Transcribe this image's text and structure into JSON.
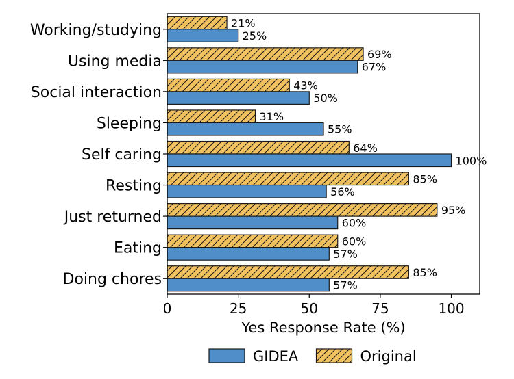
{
  "chart_data": {
    "type": "bar",
    "orientation": "horizontal",
    "title": "",
    "xlabel": "Yes Response Rate (%)",
    "ylabel": "",
    "xlim": [
      0,
      110
    ],
    "x_ticks": [
      "0",
      "25",
      "50",
      "75",
      "100"
    ],
    "x_tick_values": [
      0,
      25,
      50,
      75,
      100
    ],
    "grid": false,
    "legend_position": "bottom-center",
    "categories": [
      "Working/studying",
      "Using media",
      "Social interaction",
      "Sleeping",
      "Self caring",
      "Resting",
      "Just returned",
      "Eating",
      "Doing chores"
    ],
    "series": [
      {
        "name": "Original",
        "color": "#f0c15e",
        "hatch": "diagonal",
        "values": [
          21,
          69,
          43,
          31,
          64,
          85,
          95,
          60,
          85
        ],
        "labels": [
          "21%",
          "69%",
          "43%",
          "31%",
          "64%",
          "85%",
          "95%",
          "60%",
          "85%"
        ]
      },
      {
        "name": "GIDEA",
        "color": "#4f8ec9",
        "hatch": "none",
        "values": [
          25,
          67,
          50,
          55,
          100,
          56,
          60,
          57,
          57
        ],
        "labels": [
          "25%",
          "67%",
          "50%",
          "55%",
          "100%",
          "56%",
          "60%",
          "57%",
          "57%"
        ]
      }
    ],
    "legend": [
      {
        "label": "GIDEA",
        "color": "#4f8ec9",
        "hatch": "none"
      },
      {
        "label": "Original",
        "color": "#f0c15e",
        "hatch": "diagonal"
      }
    ]
  }
}
